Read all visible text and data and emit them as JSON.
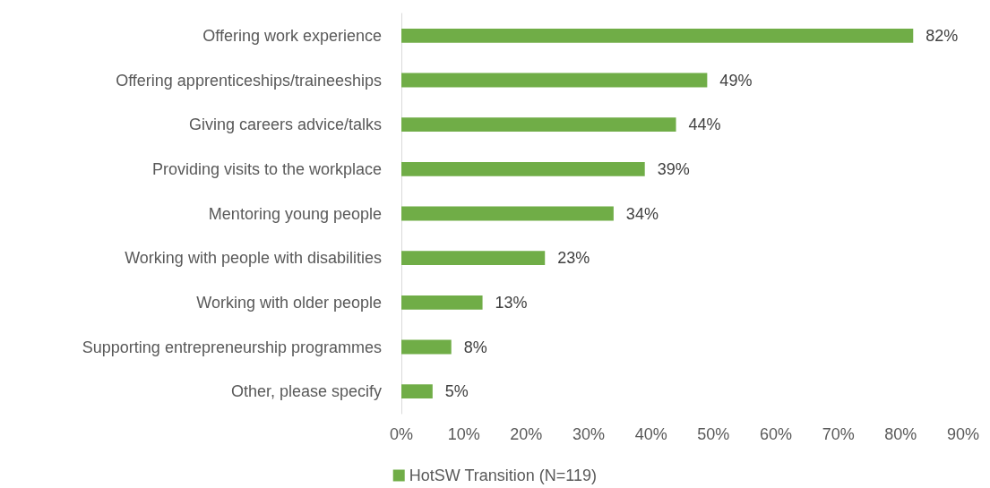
{
  "chart_data": {
    "type": "bar",
    "orientation": "horizontal",
    "categories": [
      "Offering work experience",
      "Offering apprenticeships/traineeships",
      "Giving careers advice/talks",
      "Providing visits to the workplace",
      "Mentoring young people",
      "Working with people with disabilities",
      "Working with older people",
      "Supporting entrepreneurship programmes",
      "Other, please specify"
    ],
    "series": [
      {
        "name": "HotSW Transition (N=119)",
        "color": "#70ad47",
        "values": [
          82,
          49,
          44,
          39,
          34,
          23,
          13,
          8,
          5
        ],
        "value_labels": [
          "82%",
          "49%",
          "44%",
          "39%",
          "34%",
          "23%",
          "13%",
          "8%",
          "5%"
        ]
      }
    ],
    "xlim": [
      0,
      90
    ],
    "xticks": [
      {
        "value": 0,
        "label": "0%"
      },
      {
        "value": 10,
        "label": "10%"
      },
      {
        "value": 20,
        "label": "20%"
      },
      {
        "value": 30,
        "label": "30%"
      },
      {
        "value": 40,
        "label": "40%"
      },
      {
        "value": 50,
        "label": "50%"
      },
      {
        "value": 60,
        "label": "60%"
      },
      {
        "value": 70,
        "label": "70%"
      },
      {
        "value": 80,
        "label": "80%"
      },
      {
        "value": 90,
        "label": "90%"
      }
    ],
    "grid": false,
    "legend": "bottom"
  }
}
